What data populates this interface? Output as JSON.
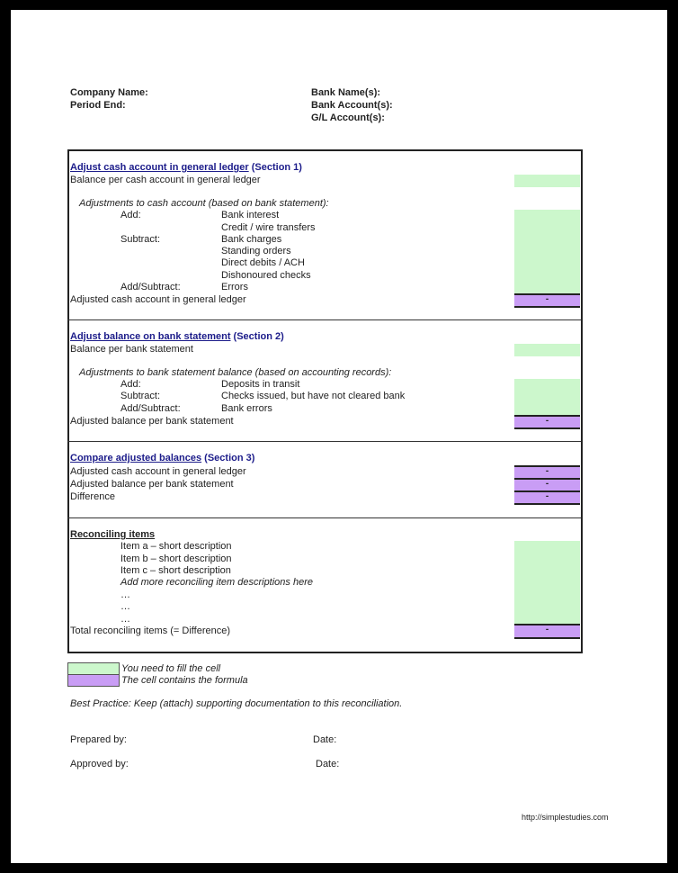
{
  "header": {
    "company_name": "Company Name:",
    "period_end": "Period End:",
    "bank_names": "Bank Name(s):",
    "bank_accounts": "Bank Account(s):",
    "gl_accounts": "G/L Account(s):"
  },
  "section1": {
    "title": "Adjust cash account in general ledger",
    "tag": "(Section 1)",
    "balance": "Balance per cash account in general ledger",
    "adjustments_heading": "Adjustments to cash account (based on bank statement):",
    "add": "Add:",
    "subtract": "Subtract:",
    "add_subtract": "Add/Subtract:",
    "items": [
      "Bank interest",
      "Credit / wire transfers",
      "Bank charges",
      "Standing orders",
      "Direct debits / ACH",
      "Dishonoured checks",
      "Errors"
    ],
    "adjusted": "Adjusted cash account in general ledger",
    "adjusted_value": "-"
  },
  "section2": {
    "title": "Adjust balance on bank statement",
    "tag": "(Section 2)",
    "balance": "Balance per bank statement",
    "adjustments_heading": "Adjustments to bank statement balance (based on accounting records):",
    "add": "Add:",
    "subtract": "Subtract:",
    "add_subtract": "Add/Subtract:",
    "items": [
      "Deposits in transit",
      "Checks issued, but have not cleared bank",
      "Bank errors"
    ],
    "adjusted": "Adjusted balance per bank statement",
    "adjusted_value": "-"
  },
  "section3": {
    "title": "Compare adjusted balances",
    "tag": "(Section 3)",
    "rows": [
      {
        "label": "Adjusted cash account in general ledger",
        "value": "-"
      },
      {
        "label": "Adjusted balance per bank statement",
        "value": "-"
      },
      {
        "label": "Difference",
        "value": "-"
      }
    ]
  },
  "reconciling": {
    "title": "Reconciling items",
    "items": [
      "Item a – short description",
      "Item b – short description",
      "Item c – short description",
      "Add more reconciling item descriptions here",
      "…",
      "…",
      "…"
    ],
    "total": "Total reconciling items (= Difference)",
    "total_value": "-"
  },
  "legend": {
    "fill": "You need to fill the cell",
    "formula": "The cell contains the formula",
    "fill_color": "#ccf7cc",
    "formula_color": "#c99df5"
  },
  "best_practice": "Best Practice: Keep (attach) supporting documentation to this reconciliation.",
  "signoff": {
    "prepared_by": "Prepared by:",
    "approved_by": "Approved by:",
    "date1": "Date:",
    "date2": "Date:"
  },
  "footer_url": "http://simplestudies.com"
}
